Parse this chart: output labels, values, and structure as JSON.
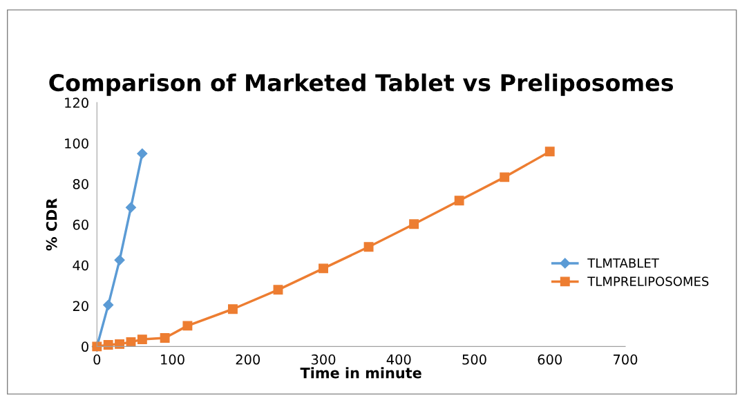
{
  "chart_data": {
    "type": "line",
    "title": "Comparison of Marketed Tablet vs Preliposomes",
    "xlabel": "Time in minute",
    "ylabel": "% CDR",
    "xlim": [
      0,
      700
    ],
    "xticks": [
      0,
      100,
      200,
      300,
      400,
      500,
      600,
      700
    ],
    "ylim": [
      0,
      120
    ],
    "yticks": [
      0,
      20,
      40,
      60,
      80,
      100,
      120
    ],
    "grid": false,
    "legend": "center right",
    "line_style": "solid",
    "series": [
      {
        "name": "TLMTABLET",
        "color": "#5b9bd5",
        "marker": "diamond",
        "x": [
          0,
          15,
          30,
          45,
          60
        ],
        "values": [
          0,
          20.4,
          42.5,
          68.4,
          94.9
        ]
      },
      {
        "name": "TLMPRELIPOSOMES",
        "color": "#ed7d31",
        "marker": "square",
        "x": [
          0,
          15,
          30,
          45,
          60,
          90,
          120,
          180,
          240,
          300,
          360,
          420,
          480,
          540,
          600
        ],
        "values": [
          0,
          0.8,
          1.2,
          2.2,
          3.5,
          4.2,
          10.2,
          18.4,
          27.9,
          38.4,
          49,
          60.2,
          71.8,
          83.3,
          95.9
        ]
      }
    ]
  }
}
